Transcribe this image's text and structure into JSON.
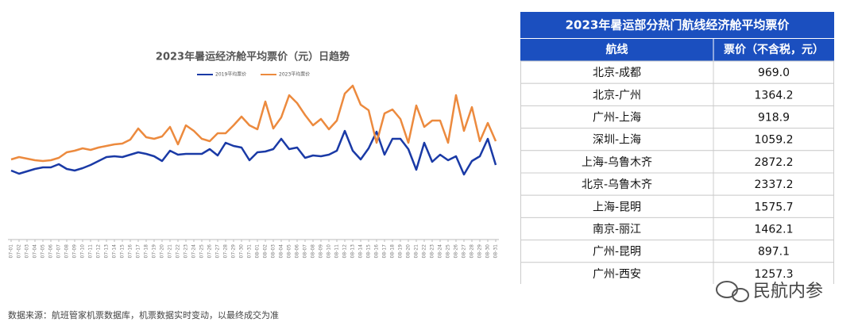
{
  "chart_data": {
    "type": "line",
    "title": "2023年暑运经济舱平均票价（元）日趋势",
    "categories": [
      "07-01",
      "07-02",
      "07-03",
      "07-04",
      "07-05",
      "07-06",
      "07-07",
      "07-08",
      "07-09",
      "07-10",
      "07-11",
      "07-12",
      "07-13",
      "07-14",
      "07-15",
      "07-16",
      "07-17",
      "07-18",
      "07-19",
      "07-20",
      "07-21",
      "07-22",
      "07-23",
      "07-24",
      "07-25",
      "07-26",
      "07-27",
      "07-28",
      "07-29",
      "07-30",
      "07-31",
      "08-01",
      "08-02",
      "08-03",
      "08-04",
      "08-05",
      "08-06",
      "08-07",
      "08-08",
      "08-09",
      "08-10",
      "08-11",
      "08-12",
      "08-13",
      "08-14",
      "08-15",
      "08-16",
      "08-17",
      "08-18",
      "08-19",
      "08-20",
      "08-21",
      "08-22",
      "08-23",
      "08-24",
      "08-25",
      "08-26",
      "08-27",
      "08-28",
      "08-29",
      "08-30",
      "08-31"
    ],
    "series": [
      {
        "name": "2019平均票价",
        "color": "#1a3aa6",
        "values": [
          850,
          810,
          840,
          870,
          890,
          890,
          930,
          870,
          850,
          880,
          920,
          970,
          1020,
          1030,
          1020,
          1050,
          1080,
          1060,
          1030,
          970,
          1100,
          1050,
          1060,
          1060,
          1060,
          1120,
          1040,
          1200,
          1160,
          1140,
          980,
          1080,
          1090,
          1120,
          1250,
          1120,
          1140,
          1010,
          1040,
          1030,
          1050,
          1100,
          1350,
          1100,
          990,
          1130,
          1340,
          1050,
          1250,
          1250,
          1120,
          860,
          1200,
          960,
          1050,
          980,
          1030,
          800,
          970,
          1030,
          1250,
          920
        ]
      },
      {
        "name": "2023平均票价",
        "color": "#ec8a3e",
        "values": [
          990,
          1020,
          1000,
          980,
          970,
          980,
          1010,
          1080,
          1100,
          1130,
          1110,
          1140,
          1160,
          1180,
          1190,
          1240,
          1380,
          1270,
          1250,
          1280,
          1400,
          1180,
          1420,
          1350,
          1250,
          1220,
          1320,
          1320,
          1420,
          1530,
          1420,
          1370,
          1720,
          1380,
          1520,
          1800,
          1700,
          1550,
          1420,
          1500,
          1370,
          1480,
          1820,
          1920,
          1680,
          1610,
          1200,
          1570,
          1620,
          1500,
          1200,
          1670,
          1400,
          1480,
          1480,
          1200,
          1800,
          1350,
          1650,
          1220,
          1450,
          1220
        ]
      }
    ],
    "ylim": [
      0,
      2200
    ],
    "grid": false,
    "legend": "top"
  },
  "table": {
    "title": "2023年暑运部分热门航线经济舱平均票价",
    "columns": [
      "航线",
      "票价（不含税，元）"
    ],
    "rows": [
      [
        "北京-成都",
        "969.0"
      ],
      [
        "北京-广州",
        "1364.2"
      ],
      [
        "广州-上海",
        "918.9"
      ],
      [
        "深圳-上海",
        "1059.2"
      ],
      [
        "上海-乌鲁木齐",
        "2872.2"
      ],
      [
        "北京-乌鲁木齐",
        "2337.2"
      ],
      [
        "上海-昆明",
        "1575.7"
      ],
      [
        "南京-丽江",
        "1462.1"
      ],
      [
        "广州-昆明",
        "897.1"
      ],
      [
        "广州-西安",
        "1257.3"
      ]
    ]
  },
  "source": "数据来源：航班管家机票数据库，机票数据实时变动，以最终成交为准",
  "watermark": "民航内参"
}
